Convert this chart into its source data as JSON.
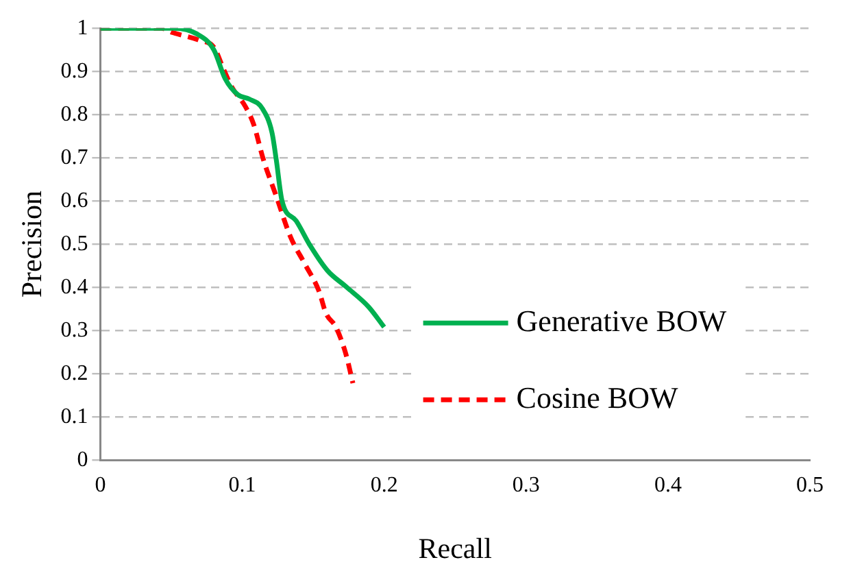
{
  "chart_data": {
    "type": "line",
    "xlabel": "Recall",
    "ylabel": "Precision",
    "xlim": [
      0,
      0.5
    ],
    "xticks": [
      0,
      0.1,
      0.2,
      0.3,
      0.4,
      0.5
    ],
    "ylim": [
      0,
      1
    ],
    "yticks": [
      0,
      0.1,
      0.2,
      0.3,
      0.4,
      0.5,
      0.6,
      0.7,
      0.8,
      0.9,
      1
    ],
    "grid": "y",
    "legend": "right",
    "marker": "none",
    "series": [
      {
        "name": "Generative BOW",
        "color": "#00b050",
        "line_style": "solid",
        "x": [
          0,
          0.051,
          0.068,
          0.08,
          0.088,
          0.097,
          0.105,
          0.114,
          0.121,
          0.124,
          0.128,
          0.138,
          0.148,
          0.16,
          0.173,
          0.189,
          0.2
        ],
        "values": [
          1,
          1,
          0.987,
          0.95,
          0.883,
          0.846,
          0.836,
          0.815,
          0.758,
          0.695,
          0.601,
          0.554,
          0.496,
          0.439,
          0.402,
          0.355,
          0.308
        ]
      },
      {
        "name": "Cosine BOW",
        "color": "#ff0000",
        "line_style": "dashed",
        "x": [
          0,
          0.043,
          0.051,
          0.07,
          0.08,
          0.087,
          0.093,
          0.102,
          0.108,
          0.115,
          0.124,
          0.134,
          0.144,
          0.154,
          0.159,
          0.166,
          0.173,
          0.178
        ],
        "values": [
          1,
          1,
          0.99,
          0.972,
          0.956,
          0.904,
          0.862,
          0.82,
          0.778,
          0.695,
          0.611,
          0.517,
          0.455,
          0.392,
          0.34,
          0.308,
          0.246,
          0.178
        ]
      }
    ]
  }
}
